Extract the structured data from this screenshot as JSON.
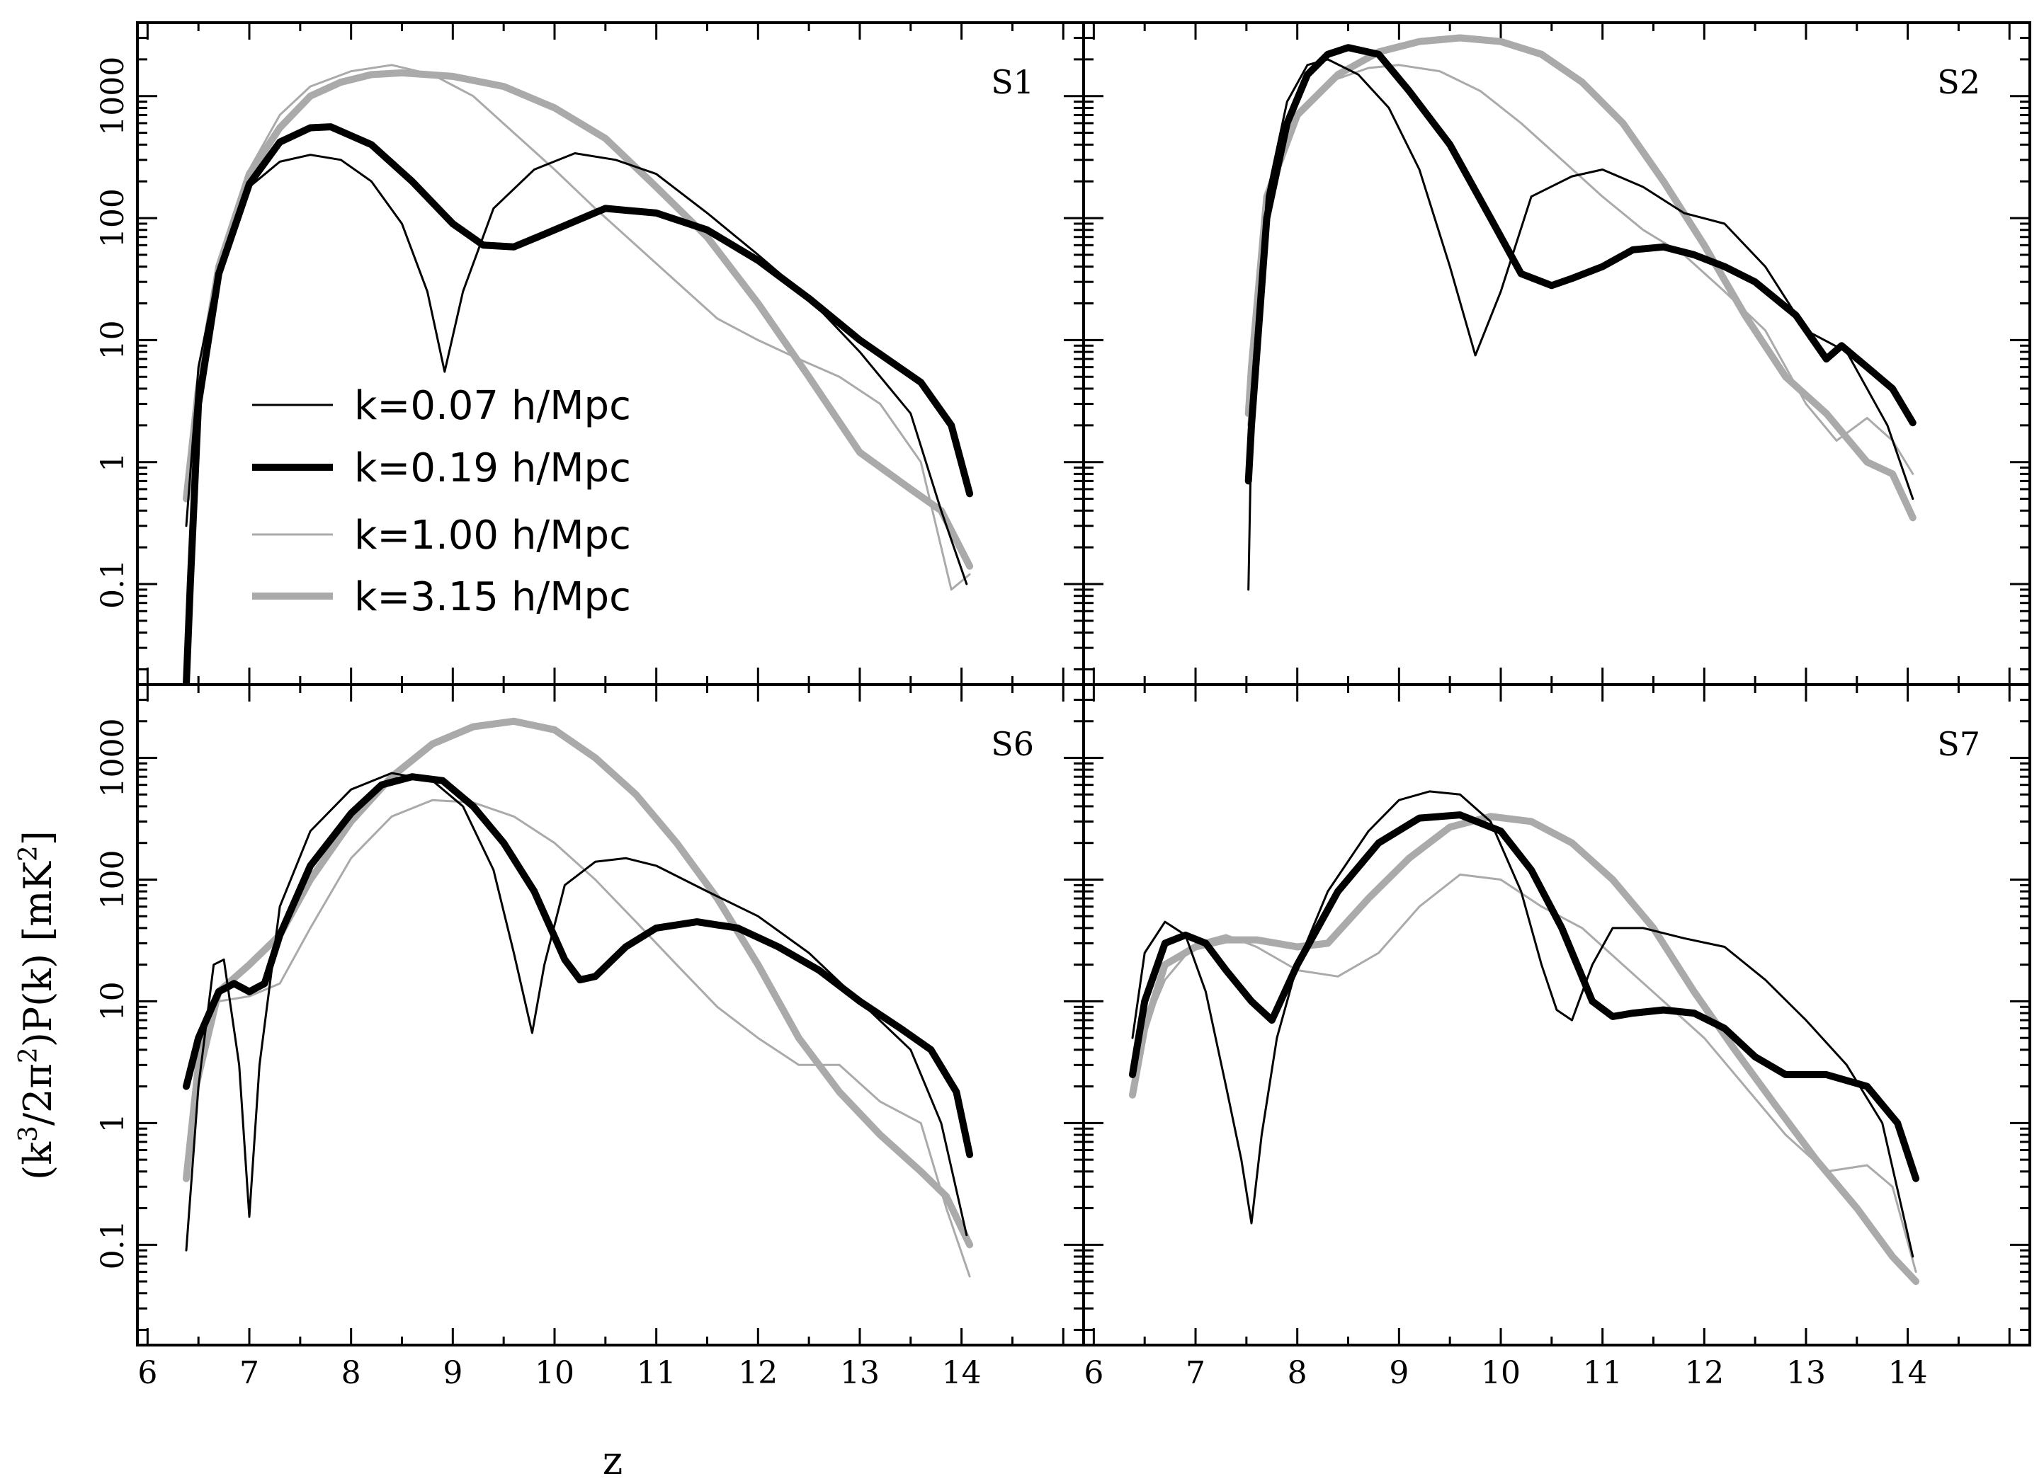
{
  "chart_data": {
    "type": "line",
    "layout": "2x2 panels, shared axes",
    "xlabel": "z",
    "ylabel_parts": {
      "pre": "(k",
      "sup1": "3",
      "mid": "/2π",
      "sup2": "2",
      "post": ")P(k)  [mK",
      "sup3": "2",
      "end": "]"
    },
    "xlim": [
      5.9,
      15.2
    ],
    "ylim": [
      0.015,
      4000
    ],
    "yscale": "log",
    "x_ticks": [
      6,
      7,
      8,
      9,
      10,
      11,
      12,
      13,
      14
    ],
    "x_tick_labels": [
      "6",
      "7",
      "8",
      "9",
      "10",
      "11",
      "12",
      "13",
      "14"
    ],
    "y_ticks": [
      0.1,
      1,
      10,
      100,
      1000
    ],
    "y_tick_labels": [
      "0.1",
      "1",
      "10",
      "100",
      "1000"
    ],
    "legend": [
      {
        "label": "k=0.07 h/Mpc",
        "color": "#000000",
        "width": 3
      },
      {
        "label": "k=0.19 h/Mpc",
        "color": "#000000",
        "width": 10
      },
      {
        "label": "k=1.00 h/Mpc",
        "color": "#aaaaaa",
        "width": 3
      },
      {
        "label": "k=3.15 h/Mpc",
        "color": "#aaaaaa",
        "width": 10
      }
    ],
    "panels": [
      {
        "label": "S1",
        "series": [
          {
            "name": "k=0.07 h/Mpc",
            "x": [
              6.38,
              6.5,
              6.7,
              7.0,
              7.3,
              7.6,
              7.9,
              8.2,
              8.5,
              8.75,
              8.92,
              9.1,
              9.4,
              9.8,
              10.2,
              10.6,
              11.0,
              11.5,
              12.0,
              12.5,
              13.0,
              13.5,
              13.8,
              14.05
            ],
            "y": [
              0.3,
              6,
              40,
              180,
              290,
              330,
              300,
              200,
              90,
              25,
              5.5,
              25,
              120,
              250,
              340,
              300,
              230,
              110,
              50,
              22,
              8,
              2.5,
              0.4,
              0.1
            ]
          },
          {
            "name": "k=0.19 h/Mpc",
            "x": [
              6.38,
              6.42,
              6.5,
              6.7,
              7.0,
              7.3,
              7.6,
              7.8,
              8.2,
              8.6,
              9.0,
              9.3,
              9.6,
              10.0,
              10.5,
              11.0,
              11.5,
              12.0,
              12.5,
              13.0,
              13.6,
              13.9,
              14.08
            ],
            "y": [
              0.015,
              0.1,
              3,
              35,
              190,
              420,
              550,
              560,
              400,
              200,
              90,
              60,
              58,
              80,
              120,
              110,
              80,
              45,
              22,
              10,
              4.5,
              2,
              0.55
            ]
          },
          {
            "name": "k=1.00 h/Mpc",
            "x": [
              6.38,
              6.5,
              6.7,
              7.0,
              7.3,
              7.6,
              8.0,
              8.4,
              8.8,
              9.2,
              9.6,
              10.0,
              10.4,
              10.8,
              11.2,
              11.6,
              12.0,
              12.4,
              12.8,
              13.2,
              13.6,
              13.9,
              14.08
            ],
            "y": [
              0.5,
              3,
              40,
              250,
              700,
              1200,
              1600,
              1800,
              1500,
              1000,
              500,
              250,
              120,
              60,
              30,
              15,
              10,
              7,
              5,
              3,
              1,
              0.09,
              0.12
            ]
          },
          {
            "name": "k=3.15 h/Mpc",
            "x": [
              6.38,
              6.5,
              6.7,
              7.0,
              7.3,
              7.6,
              7.9,
              8.2,
              8.5,
              9.0,
              9.5,
              10.0,
              10.5,
              11.0,
              11.5,
              12.0,
              12.5,
              13.0,
              13.5,
              13.8,
              14.08
            ],
            "y": [
              0.5,
              4,
              40,
              230,
              550,
              1000,
              1300,
              1500,
              1550,
              1450,
              1200,
              800,
              450,
              180,
              70,
              20,
              5,
              1.2,
              0.6,
              0.4,
              0.14
            ]
          }
        ]
      },
      {
        "label": "S2",
        "series": [
          {
            "name": "k=0.07 h/Mpc",
            "x": [
              7.52,
              7.55,
              7.7,
              7.9,
              8.1,
              8.3,
              8.6,
              8.9,
              9.2,
              9.5,
              9.75,
              10.0,
              10.3,
              10.7,
              11.0,
              11.4,
              11.8,
              12.2,
              12.6,
              13.0,
              13.4,
              13.8,
              14.05
            ],
            "y": [
              0.09,
              2,
              150,
              900,
              1800,
              2000,
              1500,
              800,
              250,
              40,
              7.5,
              25,
              150,
              220,
              250,
              180,
              110,
              90,
              40,
              12,
              8,
              2,
              0.5
            ]
          },
          {
            "name": "k=0.19 h/Mpc",
            "x": [
              7.52,
              7.55,
              7.7,
              7.9,
              8.1,
              8.3,
              8.5,
              8.8,
              9.1,
              9.5,
              9.9,
              10.2,
              10.5,
              10.7,
              11.0,
              11.3,
              11.6,
              11.9,
              12.2,
              12.5,
              12.9,
              13.2,
              13.35,
              13.6,
              13.85,
              14.05
            ],
            "y": [
              0.7,
              2,
              100,
              600,
              1500,
              2200,
              2500,
              2200,
              1100,
              400,
              100,
              35,
              28,
              32,
              40,
              55,
              58,
              50,
              40,
              30,
              16,
              7,
              9,
              6,
              4,
              2.1
            ]
          },
          {
            "name": "k=1.00 h/Mpc",
            "x": [
              7.52,
              7.55,
              7.7,
              8.0,
              8.3,
              8.7,
              9.0,
              9.4,
              9.8,
              10.2,
              10.6,
              11.0,
              11.4,
              11.8,
              12.2,
              12.6,
              13.0,
              13.3,
              13.6,
              13.85,
              14.05
            ],
            "y": [
              2,
              4,
              150,
              700,
              1300,
              1700,
              1800,
              1600,
              1100,
              600,
              300,
              150,
              80,
              50,
              25,
              12,
              3,
              1.5,
              2.3,
              1.5,
              0.8
            ]
          },
          {
            "name": "k=3.15 h/Mpc",
            "x": [
              7.52,
              7.55,
              7.7,
              8.0,
              8.4,
              8.8,
              9.2,
              9.6,
              10.0,
              10.4,
              10.8,
              11.2,
              11.6,
              12.0,
              12.4,
              12.8,
              13.2,
              13.6,
              13.85,
              14.05
            ],
            "y": [
              2.5,
              6,
              150,
              700,
              1500,
              2300,
              2800,
              3000,
              2800,
              2200,
              1300,
              600,
              200,
              60,
              16,
              5,
              2.5,
              1,
              0.8,
              0.35
            ]
          }
        ]
      },
      {
        "label": "S6",
        "series": [
          {
            "name": "k=0.07 h/Mpc",
            "x": [
              6.38,
              6.5,
              6.65,
              6.75,
              6.9,
              7.0,
              7.1,
              7.3,
              7.6,
              8.0,
              8.4,
              8.8,
              9.1,
              9.4,
              9.6,
              9.78,
              9.9,
              10.1,
              10.4,
              10.7,
              11.0,
              11.5,
              12.0,
              12.5,
              13.0,
              13.5,
              13.8,
              14.05
            ],
            "y": [
              0.09,
              2,
              20,
              22,
              3,
              0.17,
              3,
              60,
              250,
              550,
              750,
              650,
              400,
              120,
              25,
              5.5,
              20,
              90,
              140,
              150,
              130,
              80,
              50,
              25,
              10,
              4,
              1,
              0.12
            ]
          },
          {
            "name": "k=0.19 h/Mpc",
            "x": [
              6.38,
              6.5,
              6.7,
              6.85,
              7.0,
              7.15,
              7.3,
              7.6,
              8.0,
              8.3,
              8.6,
              8.9,
              9.2,
              9.5,
              9.8,
              10.1,
              10.25,
              10.4,
              10.7,
              11.0,
              11.4,
              11.8,
              12.2,
              12.6,
              13.0,
              13.4,
              13.7,
              13.95,
              14.08
            ],
            "y": [
              2,
              5,
              12,
              14,
              12,
              14,
              35,
              130,
              350,
              600,
              700,
              650,
              400,
              200,
              80,
              22,
              15,
              16,
              28,
              40,
              45,
              40,
              28,
              18,
              10,
              6,
              4,
              1.8,
              0.55
            ]
          },
          {
            "name": "k=1.00 h/Mpc",
            "x": [
              6.38,
              6.5,
              6.7,
              7.0,
              7.3,
              7.6,
              8.0,
              8.4,
              8.8,
              9.2,
              9.6,
              10.0,
              10.4,
              10.8,
              11.2,
              11.6,
              12.0,
              12.4,
              12.8,
              13.2,
              13.6,
              13.85,
              14.08
            ],
            "y": [
              0.4,
              2,
              10,
              11,
              14,
              40,
              150,
              330,
              450,
              430,
              330,
              200,
              100,
              45,
              20,
              9,
              5,
              3,
              3,
              1.5,
              1,
              0.2,
              0.055
            ]
          },
          {
            "name": "k=3.15 h/Mpc",
            "x": [
              6.38,
              6.5,
              6.7,
              7.0,
              7.3,
              7.6,
              8.0,
              8.4,
              8.8,
              9.2,
              9.6,
              10.0,
              10.4,
              10.8,
              11.2,
              11.6,
              12.0,
              12.4,
              12.8,
              13.2,
              13.6,
              13.85,
              14.08
            ],
            "y": [
              0.35,
              3,
              12,
              20,
              35,
              100,
              300,
              700,
              1300,
              1800,
              2000,
              1700,
              1000,
              500,
              200,
              70,
              20,
              5,
              1.8,
              0.8,
              0.4,
              0.25,
              0.1
            ]
          }
        ]
      },
      {
        "label": "S7",
        "series": [
          {
            "name": "k=0.07 h/Mpc",
            "x": [
              6.38,
              6.5,
              6.7,
              6.9,
              7.1,
              7.3,
              7.45,
              7.55,
              7.65,
              7.8,
              8.0,
              8.3,
              8.7,
              9.0,
              9.3,
              9.6,
              9.9,
              10.2,
              10.4,
              10.55,
              10.7,
              10.9,
              11.1,
              11.4,
              11.8,
              12.2,
              12.6,
              13.0,
              13.4,
              13.75,
              14.05
            ],
            "y": [
              5,
              25,
              45,
              35,
              12,
              2,
              0.5,
              0.15,
              0.8,
              5,
              20,
              80,
              250,
              450,
              530,
              500,
              300,
              80,
              20,
              8.5,
              7,
              20,
              40,
              40,
              33,
              28,
              15,
              7,
              3,
              1,
              0.08
            ]
          },
          {
            "name": "k=0.19 h/Mpc",
            "x": [
              6.38,
              6.5,
              6.7,
              6.9,
              7.1,
              7.3,
              7.55,
              7.75,
              8.0,
              8.4,
              8.8,
              9.2,
              9.6,
              10.0,
              10.3,
              10.6,
              10.9,
              11.1,
              11.3,
              11.6,
              11.9,
              12.2,
              12.5,
              12.8,
              13.2,
              13.6,
              13.9,
              14.08
            ],
            "y": [
              2.5,
              10,
              30,
              35,
              30,
              18,
              10,
              7,
              20,
              80,
              200,
              320,
              340,
              250,
              120,
              40,
              10,
              7.5,
              8,
              8.5,
              8,
              6,
              3.5,
              2.5,
              2.5,
              2,
              1,
              0.35
            ]
          },
          {
            "name": "k=1.00 h/Mpc",
            "x": [
              6.38,
              6.5,
              6.7,
              7.0,
              7.3,
              7.6,
              8.0,
              8.4,
              8.8,
              9.2,
              9.6,
              10.0,
              10.4,
              10.8,
              11.2,
              11.6,
              12.0,
              12.4,
              12.8,
              13.2,
              13.6,
              13.85,
              14.08
            ],
            "y": [
              2,
              6,
              15,
              30,
              35,
              28,
              18,
              16,
              25,
              60,
              110,
              100,
              60,
              40,
              20,
              10,
              5,
              2,
              0.8,
              0.4,
              0.45,
              0.3,
              0.06
            ]
          },
          {
            "name": "k=3.15 h/Mpc",
            "x": [
              6.38,
              6.5,
              6.7,
              7.0,
              7.3,
              7.6,
              8.0,
              8.3,
              8.7,
              9.1,
              9.5,
              9.9,
              10.3,
              10.7,
              11.1,
              11.5,
              11.9,
              12.3,
              12.7,
              13.1,
              13.5,
              13.85,
              14.08
            ],
            "y": [
              1.7,
              6,
              20,
              28,
              32,
              32,
              28,
              30,
              70,
              150,
              270,
              330,
              300,
              200,
              100,
              40,
              12,
              4,
              1.4,
              0.5,
              0.2,
              0.08,
              0.05
            ]
          }
        ]
      }
    ]
  }
}
